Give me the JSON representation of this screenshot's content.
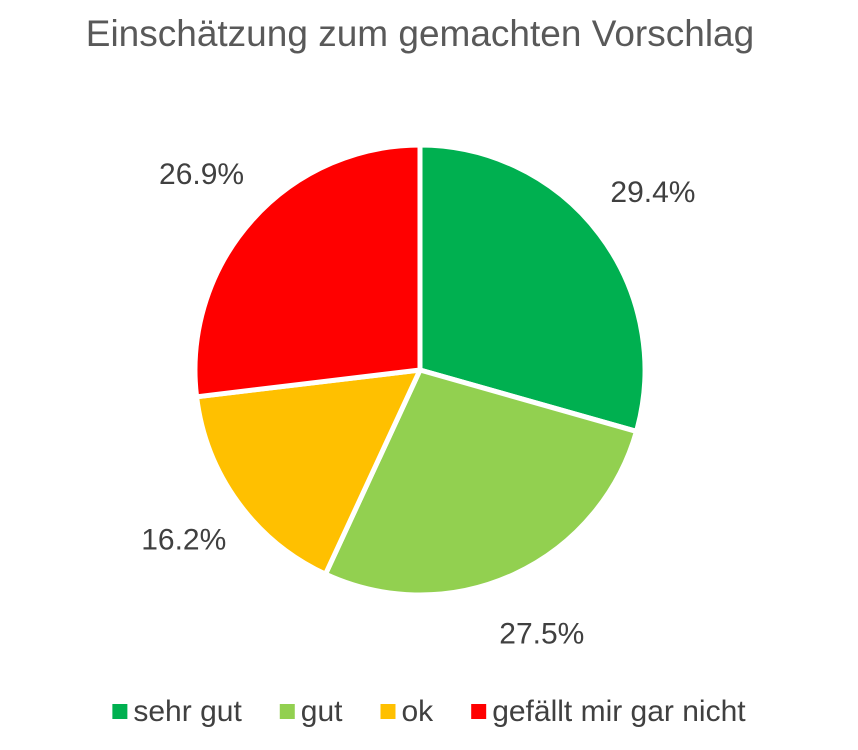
{
  "chart_data": {
    "type": "pie",
    "title": "Einschätzung zum gemachten Vorschlag",
    "categories": [
      "sehr gut",
      "gut",
      "ok",
      "gefällt mir gar nicht"
    ],
    "values": [
      29.4,
      27.5,
      16.2,
      26.9
    ],
    "value_labels": [
      "29.4%",
      "27.5%",
      "16.2%",
      "26.9%"
    ],
    "colors": [
      "#00b050",
      "#92d050",
      "#ffc000",
      "#ff0000"
    ],
    "legend": "bottom"
  }
}
